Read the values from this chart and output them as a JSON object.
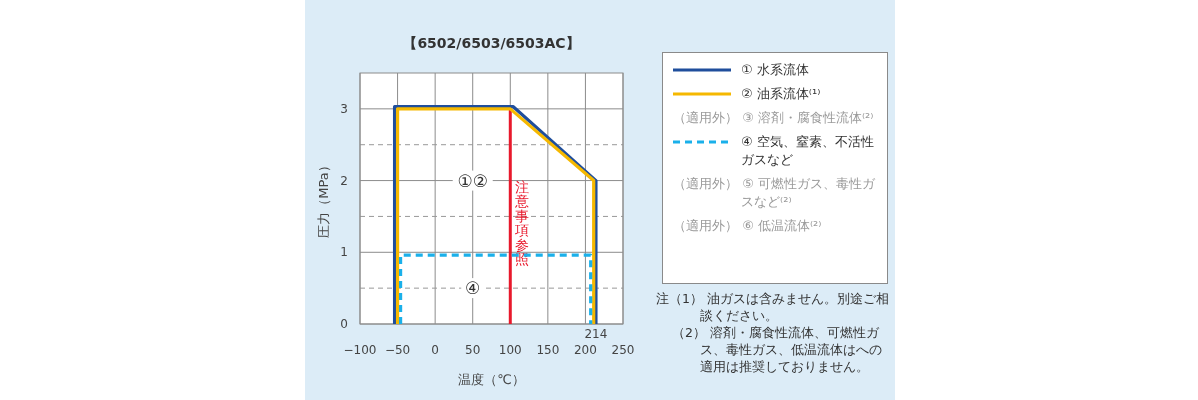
{
  "chart_data": {
    "type": "line",
    "title": "【6502/6503/6503AC】",
    "xlabel": "温度（℃）",
    "ylabel": "圧力（MPa）",
    "xlim": [
      -100,
      250
    ],
    "ylim": [
      0,
      3.5
    ],
    "xticks": [
      {
        "value": -100,
        "label": "−100"
      },
      {
        "value": -50,
        "label": "−50"
      },
      0,
      50,
      100,
      150,
      200,
      250
    ],
    "yticks": [
      0,
      {
        "value": 0.5,
        "label": null
      },
      1,
      {
        "value": 1.5,
        "label": null
      },
      2,
      {
        "value": 2.5,
        "label": null
      },
      3
    ],
    "grid": true,
    "legend": "right",
    "marker": "none",
    "series": [
      {
        "name": "① 水系流体",
        "color": "#1f4e9c",
        "line_style": "solid",
        "x": [
          -54,
          -54,
          104,
          214,
          214
        ],
        "values": [
          0,
          3.03,
          3.03,
          2,
          0
        ]
      },
      {
        "name": "② 油系流体⁽¹⁾",
        "color": "#f5b800",
        "line_style": "solid",
        "x": [
          -50,
          -50,
          100,
          211,
          211
        ],
        "values": [
          0,
          3,
          3,
          2,
          0
        ]
      },
      {
        "name": "④ 空気、窒素、不活性ガスなど",
        "color": "#1ab0ea",
        "line_style": "dashed",
        "x": [
          -46,
          -46,
          207,
          207
        ],
        "values": [
          0,
          0.96,
          0.96,
          0
        ]
      }
    ],
    "ref_lines": [
      {
        "axis": "x",
        "value": 100,
        "label": "注意事項参照",
        "color": "#e8192c"
      }
    ],
    "annotations": [
      "①②",
      "④",
      {
        "text": "214",
        "x": 214,
        "y": 0
      },
      "（適用外） ③ 溶剤・腐食性流体⁽²⁾",
      "（適用外） ⑤ 可燃性ガス、毒性ガスなど⁽²⁾",
      "（適用外） ⑥ 低温流体⁽²⁾",
      "注（1） 油ガスは含みません。別途ご相談ください。",
      "（2） 溶剤・腐食性流体、可燃性ガス、毒性ガス、低温流体はへの適用は推奨しておりません。"
    ]
  }
}
